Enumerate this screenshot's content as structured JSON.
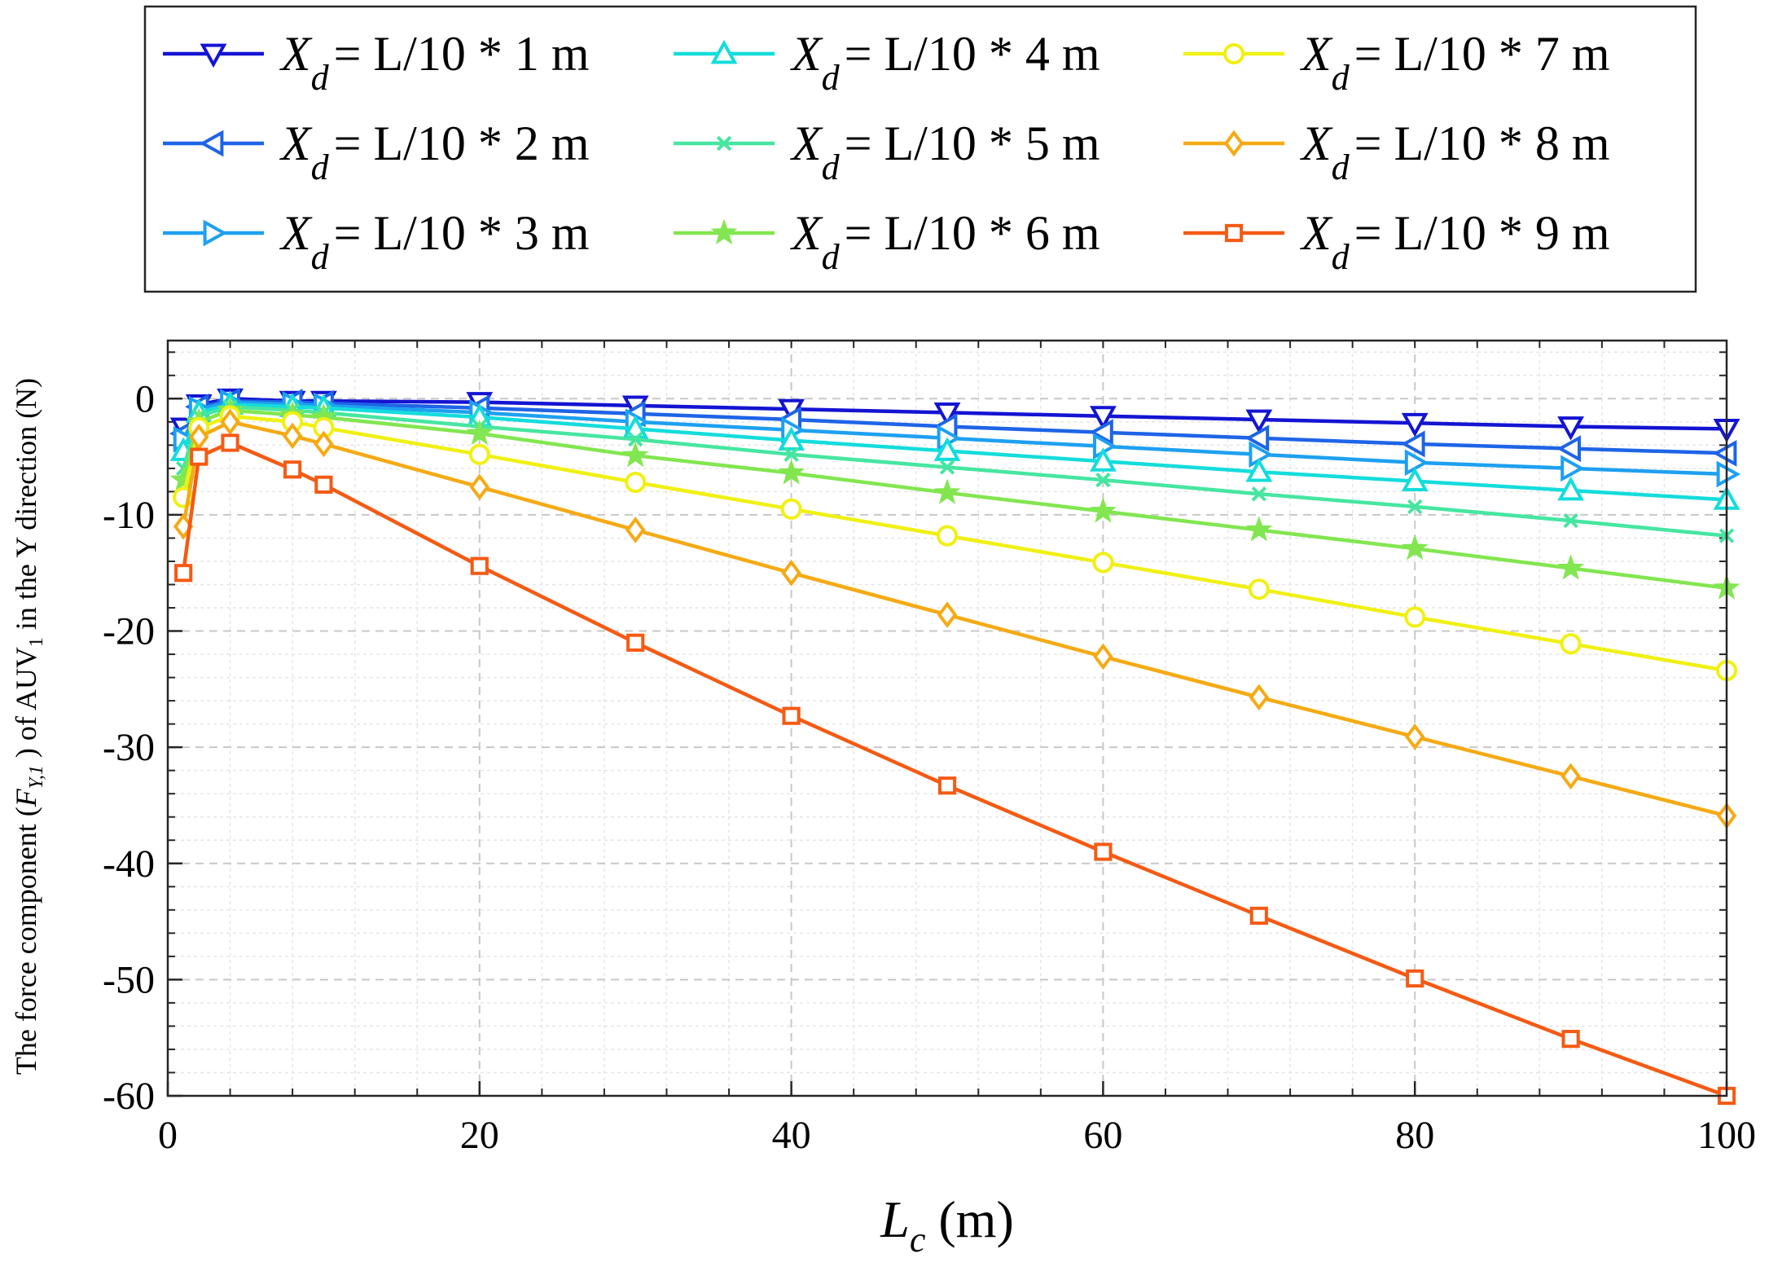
{
  "chart_data": {
    "type": "line",
    "xlabel": {
      "symbol": "L",
      "subscript": "c",
      "unit": " (m)"
    },
    "ylabel": {
      "prefix": "The force component (",
      "symbol": "F",
      "subscript": "Y,1",
      "middle": " ) of AUV",
      "auv_sub": "1",
      "suffix": " in the Y direction (N)"
    },
    "xlim": [
      0,
      100
    ],
    "ylim": [
      -60,
      5
    ],
    "xticks": [
      0,
      20,
      40,
      60,
      80,
      100
    ],
    "yticks": [
      0,
      -10,
      -20,
      -30,
      -40,
      -50,
      -60
    ],
    "grid": true,
    "legend_position": "top (outside, above plot)",
    "legend_symbol": "X",
    "legend_subscript": "d",
    "x": [
      1,
      2,
      4,
      8,
      10,
      20,
      30,
      40,
      50,
      60,
      70,
      80,
      90,
      100
    ],
    "series": [
      {
        "name": "= L/10 * 1 m",
        "marker": "triangle-down",
        "color": "#1414d2",
        "values": [
          -2.5,
          -0.5,
          0,
          -0.2,
          -0.2,
          -0.3,
          -0.6,
          -0.9,
          -1.2,
          -1.5,
          -1.8,
          -2.1,
          -2.4,
          -2.6
        ]
      },
      {
        "name": "= L/10 * 2 m",
        "marker": "triangle-left",
        "color": "#1e64e6",
        "values": [
          -3.0,
          -0.7,
          -0.2,
          -0.3,
          -0.4,
          -0.8,
          -1.3,
          -1.8,
          -2.4,
          -2.9,
          -3.4,
          -3.9,
          -4.3,
          -4.7
        ]
      },
      {
        "name": "= L/10 * 3 m",
        "marker": "triangle-right",
        "color": "#1ea0f0",
        "values": [
          -3.5,
          -0.9,
          -0.3,
          -0.5,
          -0.6,
          -1.2,
          -2.0,
          -2.7,
          -3.4,
          -4.1,
          -4.8,
          -5.5,
          -6.0,
          -6.5
        ]
      },
      {
        "name": "= L/10 * 4 m",
        "marker": "triangle-up",
        "color": "#14dcdc",
        "values": [
          -4.5,
          -1.2,
          -0.5,
          -0.7,
          -0.8,
          -1.6,
          -2.6,
          -3.6,
          -4.5,
          -5.4,
          -6.3,
          -7.1,
          -7.9,
          -8.7
        ]
      },
      {
        "name": "= L/10 * 5 m",
        "marker": "x",
        "color": "#46e6a0",
        "values": [
          -6.0,
          -1.5,
          -0.7,
          -1.0,
          -1.2,
          -2.4,
          -3.5,
          -4.8,
          -5.9,
          -7.0,
          -8.2,
          -9.3,
          -10.5,
          -11.8
        ]
      },
      {
        "name": "= L/10 * 6 m",
        "marker": "star",
        "color": "#82e650",
        "values": [
          -7.0,
          -2.0,
          -1.0,
          -1.4,
          -1.6,
          -3.0,
          -4.9,
          -6.4,
          -8.1,
          -9.7,
          -11.3,
          -12.9,
          -14.6,
          -16.3
        ]
      },
      {
        "name": "= L/10 * 7 m",
        "marker": "circle",
        "color": "#f0f014",
        "values": [
          -8.5,
          -2.5,
          -1.5,
          -2.0,
          -2.5,
          -4.8,
          -7.2,
          -9.5,
          -11.8,
          -14.1,
          -16.4,
          -18.8,
          -21.1,
          -23.4
        ]
      },
      {
        "name": "= L/10 * 8 m",
        "marker": "diamond",
        "color": "#f5aa14",
        "values": [
          -11.0,
          -3.3,
          -2.0,
          -3.2,
          -3.9,
          -7.6,
          -11.3,
          -15.0,
          -18.6,
          -22.2,
          -25.7,
          -29.1,
          -32.5,
          -35.9
        ]
      },
      {
        "name": "= L/10 * 9 m",
        "marker": "square",
        "color": "#f55a14",
        "values": [
          -15.0,
          -5.0,
          -3.8,
          -6.1,
          -7.4,
          -14.4,
          -21.0,
          -27.3,
          -33.3,
          -39.0,
          -44.5,
          -49.9,
          -55.1,
          -60.0
        ]
      }
    ]
  }
}
